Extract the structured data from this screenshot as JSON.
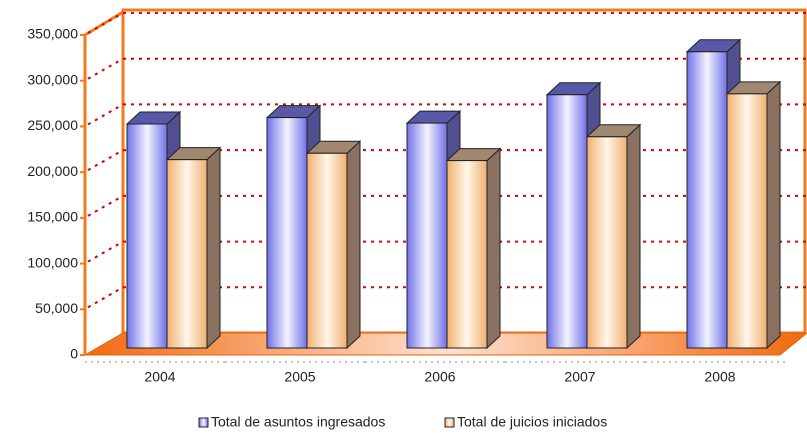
{
  "chart_data": {
    "type": "bar",
    "categories": [
      "2004",
      "2005",
      "2006",
      "2007",
      "2008"
    ],
    "series": [
      {
        "name": "Total de asuntos ingresados",
        "color": "#8c8cf0",
        "values": [
          245000,
          252000,
          246000,
          277000,
          324000
        ]
      },
      {
        "name": "Total de juicios iniciados",
        "color": "#f5c898",
        "values": [
          206000,
          213000,
          205000,
          231000,
          278000
        ]
      }
    ],
    "ylim": [
      0,
      350000
    ],
    "yticks": [
      0,
      {
        "value": 50000,
        "label": "50,000"
      },
      {
        "value": 100000,
        "label": "100,000"
      },
      {
        "value": 150000,
        "label": "150,000"
      },
      {
        "value": 200000,
        "label": "200,000"
      },
      {
        "value": 250000,
        "label": "250,000"
      },
      {
        "value": 300000,
        "label": "300,000"
      },
      {
        "value": 350000,
        "label": "350,000"
      }
    ],
    "grid": true
  }
}
